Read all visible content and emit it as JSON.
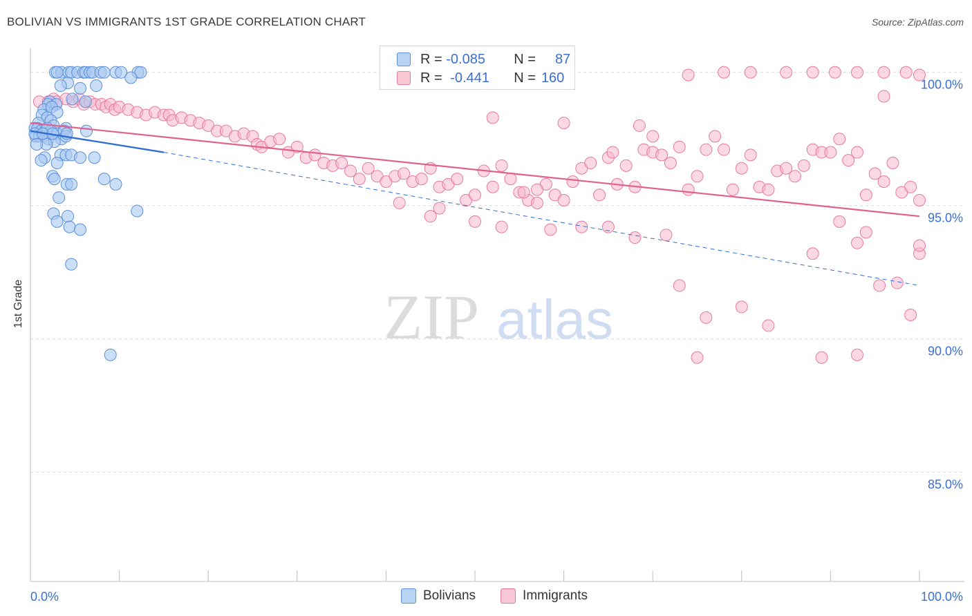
{
  "header": {
    "title": "BOLIVIAN VS IMMIGRANTS 1ST GRADE CORRELATION CHART",
    "source": "Source: ZipAtlas.com"
  },
  "watermark": {
    "zip": "ZIP",
    "atlas": "atlas"
  },
  "legend_top": {
    "rows": [
      {
        "r_label": "R =",
        "r_value": "-0.085",
        "n_label": "N =",
        "n_value": "87"
      },
      {
        "r_label": "R =",
        "r_value": "-0.441",
        "n_label": "N =",
        "n_value": "160"
      }
    ]
  },
  "legend_bottom": {
    "items": [
      "Bolivians",
      "Immigrants"
    ]
  },
  "colors": {
    "blue_fill": "#a9c8f2",
    "blue_stroke": "#5b8fd8",
    "blue_line": "#2f6fcf",
    "pink_fill": "#f7b8cc",
    "pink_stroke": "#e57aa0",
    "pink_line": "#e0608e",
    "axis_text": "#3b6fd1",
    "grid": "#d9d9d9"
  },
  "chart_data": {
    "type": "scatter",
    "title": "BOLIVIAN VS IMMIGRANTS 1ST GRADE CORRELATION CHART",
    "xlabel": "",
    "ylabel": "1st Grade",
    "xlim": [
      0,
      100
    ],
    "ylim": [
      80.9,
      100.9
    ],
    "x_tick_labels": [
      "0.0%",
      "100.0%"
    ],
    "y_ticks": [
      85,
      90,
      95,
      100
    ],
    "y_tick_labels": [
      "85.0%",
      "90.0%",
      "95.0%",
      "100.0%"
    ],
    "series": [
      {
        "name": "Bolivians",
        "R": -0.085,
        "N": 87,
        "trend_solid": {
          "x": [
            0,
            15
          ],
          "y": [
            97.8,
            97.0
          ]
        },
        "trend_dashed": {
          "x": [
            15,
            100
          ],
          "y": [
            97.0,
            92.0
          ]
        },
        "points": [
          [
            2.8,
            100
          ],
          [
            3.5,
            100
          ],
          [
            4.3,
            100
          ],
          [
            4.6,
            100
          ],
          [
            5.3,
            100
          ],
          [
            6.0,
            100
          ],
          [
            6.2,
            100
          ],
          [
            6.7,
            100
          ],
          [
            7.0,
            100
          ],
          [
            7.9,
            100
          ],
          [
            8.3,
            100
          ],
          [
            9.6,
            100
          ],
          [
            10.2,
            100
          ],
          [
            12.1,
            100
          ],
          [
            12.4,
            100
          ],
          [
            3.0,
            100
          ],
          [
            11.3,
            99.8
          ],
          [
            4.2,
            99.6
          ],
          [
            5.6,
            99.4
          ],
          [
            3.4,
            99.5
          ],
          [
            7.4,
            99.5
          ],
          [
            2.2,
            98.9
          ],
          [
            2.0,
            98.8
          ],
          [
            2.9,
            98.8
          ],
          [
            4.7,
            99.0
          ],
          [
            6.2,
            98.9
          ],
          [
            1.5,
            98.6
          ],
          [
            2.4,
            98.7
          ],
          [
            3.0,
            98.5
          ],
          [
            1.3,
            98.4
          ],
          [
            1.9,
            98.3
          ],
          [
            2.3,
            98.2
          ],
          [
            2.6,
            98.0
          ],
          [
            0.9,
            98.1
          ],
          [
            0.5,
            97.9
          ],
          [
            0.8,
            97.9
          ],
          [
            1.2,
            97.8
          ],
          [
            1.7,
            97.8
          ],
          [
            2.3,
            97.8
          ],
          [
            0.6,
            97.6
          ],
          [
            1.5,
            97.6
          ],
          [
            4.0,
            97.9
          ],
          [
            3.0,
            97.7
          ],
          [
            3.5,
            97.5
          ],
          [
            3.8,
            97.8
          ],
          [
            1.0,
            97.6
          ],
          [
            2.0,
            97.5
          ],
          [
            2.7,
            97.4
          ],
          [
            1.8,
            97.3
          ],
          [
            4.0,
            97.6
          ],
          [
            4.1,
            97.7
          ],
          [
            6.3,
            97.8
          ],
          [
            0.5,
            97.7
          ],
          [
            1.9,
            97.9
          ],
          [
            1.4,
            97.7
          ],
          [
            2.5,
            97.7
          ],
          [
            0.7,
            97.3
          ],
          [
            1.6,
            96.8
          ],
          [
            1.2,
            96.7
          ],
          [
            3.4,
            96.9
          ],
          [
            4.0,
            96.9
          ],
          [
            3.0,
            96.6
          ],
          [
            4.6,
            96.9
          ],
          [
            5.6,
            96.8
          ],
          [
            7.2,
            96.8
          ],
          [
            2.5,
            96.1
          ],
          [
            2.7,
            96.0
          ],
          [
            4.1,
            95.8
          ],
          [
            4.6,
            95.8
          ],
          [
            8.3,
            96.0
          ],
          [
            9.6,
            95.8
          ],
          [
            3.2,
            95.3
          ],
          [
            2.6,
            94.7
          ],
          [
            3.0,
            94.4
          ],
          [
            4.2,
            94.6
          ],
          [
            4.4,
            94.2
          ],
          [
            5.6,
            94.1
          ],
          [
            12.0,
            94.8
          ],
          [
            4.6,
            92.8
          ],
          [
            9.0,
            89.4
          ]
        ]
      },
      {
        "name": "Immigrants",
        "R": -0.441,
        "N": 160,
        "trend_solid": {
          "x": [
            0,
            100
          ],
          "y": [
            98.1,
            94.6
          ]
        },
        "points": [
          [
            1.0,
            98.9
          ],
          [
            2.0,
            98.9
          ],
          [
            2.6,
            99.0
          ],
          [
            3.0,
            98.9
          ],
          [
            4.0,
            99.0
          ],
          [
            4.8,
            98.9
          ],
          [
            5.5,
            99.0
          ],
          [
            6.0,
            98.8
          ],
          [
            6.7,
            98.9
          ],
          [
            7.3,
            98.8
          ],
          [
            8.0,
            98.8
          ],
          [
            8.5,
            98.7
          ],
          [
            9.0,
            98.8
          ],
          [
            9.5,
            98.6
          ],
          [
            10.0,
            98.7
          ],
          [
            11.0,
            98.6
          ],
          [
            12.0,
            98.5
          ],
          [
            13.0,
            98.4
          ],
          [
            14.0,
            98.5
          ],
          [
            15.0,
            98.4
          ],
          [
            15.6,
            98.4
          ],
          [
            16.0,
            98.2
          ],
          [
            17.0,
            98.3
          ],
          [
            18.0,
            98.2
          ],
          [
            19.0,
            98.1
          ],
          [
            20.0,
            98.0
          ],
          [
            21.0,
            97.8
          ],
          [
            22.0,
            97.8
          ],
          [
            23.0,
            97.6
          ],
          [
            24.0,
            97.7
          ],
          [
            25.0,
            97.6
          ],
          [
            25.5,
            97.3
          ],
          [
            26.0,
            97.2
          ],
          [
            27.0,
            97.4
          ],
          [
            28.0,
            97.5
          ],
          [
            29.0,
            97.0
          ],
          [
            30.0,
            97.2
          ],
          [
            31.0,
            96.8
          ],
          [
            32.0,
            96.9
          ],
          [
            33.0,
            96.6
          ],
          [
            34.0,
            96.5
          ],
          [
            35.0,
            96.6
          ],
          [
            36.0,
            96.3
          ],
          [
            37.0,
            96.0
          ],
          [
            38.0,
            96.4
          ],
          [
            39.0,
            96.1
          ],
          [
            40.0,
            95.9
          ],
          [
            41.0,
            96.1
          ],
          [
            42.0,
            96.2
          ],
          [
            43.0,
            95.9
          ],
          [
            44.0,
            96.0
          ],
          [
            45.0,
            96.4
          ],
          [
            46.0,
            95.7
          ],
          [
            47.0,
            95.8
          ],
          [
            48.0,
            96.0
          ],
          [
            49.0,
            95.2
          ],
          [
            50.0,
            95.4
          ],
          [
            51.0,
            96.3
          ],
          [
            52.0,
            95.7
          ],
          [
            53.0,
            96.5
          ],
          [
            54.0,
            96.0
          ],
          [
            55.0,
            95.5
          ],
          [
            56.0,
            95.2
          ],
          [
            57.0,
            95.1
          ],
          [
            58.0,
            95.8
          ],
          [
            59.0,
            95.4
          ],
          [
            60.0,
            95.2
          ],
          [
            61.0,
            95.9
          ],
          [
            62.0,
            96.4
          ],
          [
            63.0,
            96.6
          ],
          [
            64.0,
            95.4
          ],
          [
            65.0,
            96.8
          ],
          [
            66.0,
            95.8
          ],
          [
            67.0,
            96.5
          ],
          [
            68.0,
            95.7
          ],
          [
            69.0,
            97.1
          ],
          [
            70.0,
            97.0
          ],
          [
            71.0,
            96.9
          ],
          [
            72.0,
            96.6
          ],
          [
            73.0,
            97.2
          ],
          [
            74.0,
            95.6
          ],
          [
            75.0,
            96.1
          ],
          [
            76.0,
            97.1
          ],
          [
            77.0,
            97.6
          ],
          [
            78.0,
            97.1
          ],
          [
            79.0,
            95.6
          ],
          [
            80.0,
            96.4
          ],
          [
            81.0,
            96.9
          ],
          [
            82.0,
            95.7
          ],
          [
            83.0,
            95.6
          ],
          [
            84.0,
            96.3
          ],
          [
            85.0,
            96.4
          ],
          [
            86.0,
            96.1
          ],
          [
            87.0,
            96.5
          ],
          [
            88.0,
            97.1
          ],
          [
            89.0,
            97.0
          ],
          [
            90.0,
            97.0
          ],
          [
            91.0,
            97.5
          ],
          [
            92.0,
            96.7
          ],
          [
            93.0,
            97.0
          ],
          [
            94.0,
            95.4
          ],
          [
            95.0,
            96.2
          ],
          [
            96.0,
            95.9
          ],
          [
            97.0,
            96.6
          ],
          [
            98.0,
            95.5
          ],
          [
            99.0,
            95.7
          ],
          [
            100.0,
            95.2
          ],
          [
            74.0,
            99.9
          ],
          [
            78.0,
            100
          ],
          [
            81.0,
            100
          ],
          [
            85.0,
            100
          ],
          [
            88.0,
            100
          ],
          [
            90.5,
            100
          ],
          [
            93.0,
            100
          ],
          [
            96.0,
            100
          ],
          [
            98.5,
            100
          ],
          [
            100.0,
            99.9
          ],
          [
            96.0,
            99.1
          ],
          [
            100.0,
            93.2
          ],
          [
            95.5,
            92.0
          ],
          [
            97.5,
            92.1
          ],
          [
            88.0,
            93.2
          ],
          [
            93.0,
            93.6
          ],
          [
            100.0,
            93.5
          ],
          [
            94.0,
            94.0
          ],
          [
            91.0,
            94.4
          ],
          [
            99.0,
            90.9
          ],
          [
            76.0,
            90.8
          ],
          [
            83.0,
            90.5
          ],
          [
            89.0,
            89.3
          ],
          [
            93.0,
            89.4
          ],
          [
            75.0,
            89.3
          ],
          [
            80.0,
            91.2
          ],
          [
            73.0,
            92.0
          ],
          [
            71.5,
            93.9
          ],
          [
            65.0,
            94.2
          ],
          [
            68.0,
            93.8
          ],
          [
            62.0,
            94.2
          ],
          [
            58.5,
            94.1
          ],
          [
            53.0,
            94.2
          ],
          [
            50.0,
            94.4
          ],
          [
            46.0,
            94.9
          ],
          [
            41.5,
            95.1
          ],
          [
            45.0,
            94.6
          ],
          [
            55.5,
            95.5
          ],
          [
            57.0,
            95.6
          ],
          [
            52.0,
            98.3
          ],
          [
            60.0,
            98.1
          ],
          [
            65.5,
            97.0
          ],
          [
            68.5,
            98.0
          ],
          [
            70.0,
            97.6
          ]
        ]
      }
    ],
    "watermark": "ZIPatlas"
  }
}
